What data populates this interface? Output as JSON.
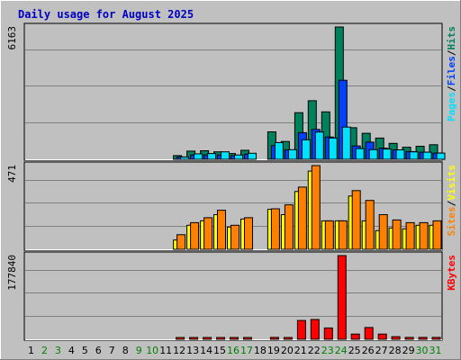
{
  "chart_data": {
    "type": "bar",
    "title": "Daily usage for August 2025",
    "categories": [
      "1",
      "2",
      "3",
      "4",
      "5",
      "6",
      "7",
      "8",
      "9",
      "10",
      "11",
      "12",
      "13",
      "14",
      "15",
      "16",
      "17",
      "18",
      "19",
      "20",
      "21",
      "22",
      "23",
      "24",
      "25",
      "26",
      "27",
      "28",
      "29",
      "30",
      "31"
    ],
    "weekend_days": [
      "2",
      "3",
      "9",
      "10",
      "16",
      "17",
      "23",
      "24",
      "30",
      "31"
    ],
    "colors": {
      "hits": "#00805C",
      "files": "#0040FF",
      "pages": "#00E0FF",
      "visits": "#FFFF00",
      "sites": "#FF8000",
      "kbytes": "#FF0000",
      "title": "#0000C0",
      "weekday_label": "#000000",
      "weekend_label": "#008000",
      "panel_bg": "#C0C0C0",
      "grid": "#808080"
    },
    "panels": [
      {
        "id": "hits-files-pages",
        "max_label": "6163",
        "ymax": 6163,
        "legend": [
          {
            "text": "Pages",
            "key": "pages"
          },
          {
            "text": "/",
            "key": null
          },
          {
            "text": "Files",
            "key": "files"
          },
          {
            "text": "/",
            "key": null
          },
          {
            "text": "Hits",
            "key": "hits"
          }
        ],
        "series": [
          {
            "name": "Hits",
            "key": "hits",
            "values": [
              0,
              0,
              0,
              0,
              0,
              0,
              0,
              0,
              0,
              0,
              0,
              170,
              380,
              400,
              350,
              270,
              420,
              0,
              1280,
              830,
              2170,
              2730,
              2210,
              6163,
              1470,
              1210,
              990,
              740,
              560,
              610,
              680
            ]
          },
          {
            "name": "Files",
            "key": "files",
            "values": [
              0,
              0,
              0,
              0,
              0,
              0,
              0,
              0,
              0,
              0,
              0,
              110,
              200,
              200,
              200,
              170,
              240,
              0,
              640,
              440,
              1240,
              1390,
              1040,
              3680,
              620,
              800,
              520,
              440,
              360,
              330,
              290
            ]
          },
          {
            "name": "Pages",
            "key": "pages",
            "values": [
              0,
              0,
              0,
              0,
              0,
              0,
              0,
              0,
              0,
              0,
              0,
              110,
              250,
              270,
              350,
              200,
              280,
              0,
              780,
              450,
              910,
              1270,
              990,
              1500,
              500,
              450,
              480,
              440,
              350,
              330,
              290
            ]
          }
        ]
      },
      {
        "id": "visits-sites",
        "max_label": "471",
        "ymax": 471,
        "legend": [
          {
            "text": "Sites",
            "key": "sites"
          },
          {
            "text": "/",
            "key": null
          },
          {
            "text": "Visits",
            "key": "visits"
          }
        ],
        "series": [
          {
            "name": "Visits",
            "key": "visits",
            "values": [
              0,
              0,
              0,
              0,
              0,
              0,
              0,
              0,
              0,
              0,
              0,
              52,
              135,
              160,
              195,
              125,
              170,
              0,
              225,
              195,
              325,
              440,
              160,
              160,
              300,
              160,
              105,
              120,
              115,
              135,
              135
            ]
          },
          {
            "name": "Sites",
            "key": "sites",
            "values": [
              0,
              0,
              0,
              0,
              0,
              0,
              0,
              0,
              0,
              0,
              0,
              82,
              150,
              178,
              220,
              135,
              178,
              0,
              228,
              250,
              350,
              471,
              160,
              160,
              330,
              275,
              195,
              165,
              150,
              150,
              160
            ]
          }
        ]
      },
      {
        "id": "kbytes",
        "max_label": "177840",
        "ymax": 177840,
        "legend": [
          {
            "text": "KBytes",
            "key": "kbytes"
          }
        ],
        "series": [
          {
            "name": "KBytes",
            "key": "kbytes",
            "values": [
              0,
              0,
              0,
              0,
              0,
              0,
              0,
              0,
              0,
              0,
              0,
              1800,
              1800,
              1800,
              1800,
              1800,
              3200,
              0,
              4000,
              3200,
              40000,
              42000,
              24000,
              177840,
              11000,
              25000,
              11000,
              5500,
              4000,
              4000,
              4000
            ]
          }
        ]
      }
    ]
  }
}
